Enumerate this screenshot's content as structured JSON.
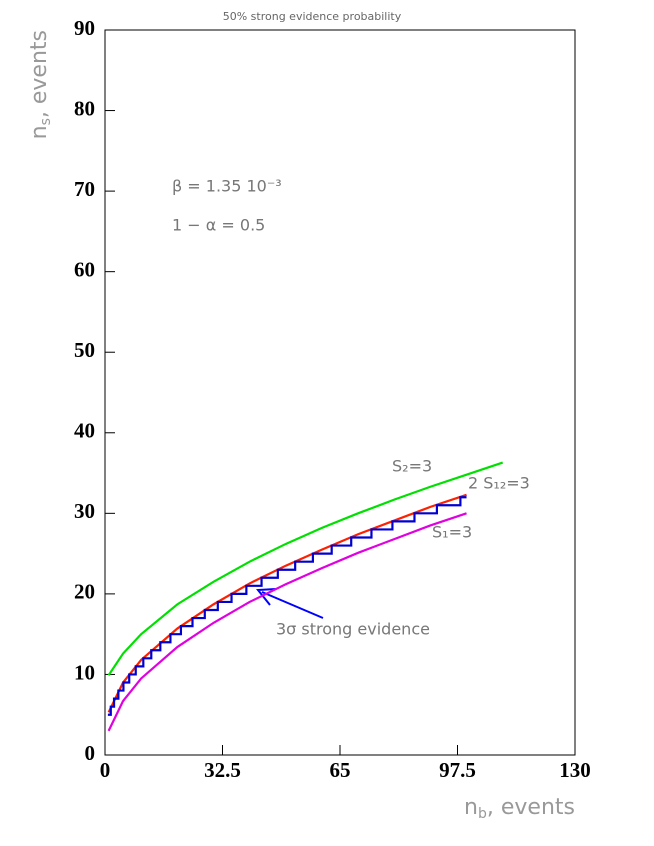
{
  "chart_data": {
    "type": "line",
    "title": "50% strong evidence probability",
    "xlabel": {
      "base": "n",
      "sub": "b",
      "rest": ", events"
    },
    "ylabel": {
      "base": "n",
      "sub": "s",
      "rest": ", events"
    },
    "xlim": [
      0,
      130
    ],
    "xticks": [
      0,
      32.5,
      65,
      97.5,
      130
    ],
    "ylim": [
      0,
      90
    ],
    "yticks": [
      0,
      10,
      20,
      30,
      40,
      50,
      60,
      70,
      80,
      90
    ],
    "series": [
      {
        "color": "#00e000",
        "x": [
          1,
          5,
          10,
          20,
          30,
          40,
          50,
          60,
          70,
          80,
          90,
          100,
          110
        ],
        "values": [
          9.9,
          12.6,
          15,
          18.7,
          21.5,
          24,
          26.2,
          28.2,
          30,
          31.7,
          33.3,
          34.8,
          36.3
        ]
      },
      {
        "color": "#e000e0",
        "x": [
          1,
          5,
          10,
          20,
          30,
          40,
          50,
          60,
          70,
          80,
          90,
          100
        ],
        "values": [
          3,
          6.7,
          9.5,
          13.4,
          16.4,
          19,
          21.2,
          23.2,
          25.1,
          26.8,
          28.5,
          30
        ]
      },
      {
        "color": "#ff2000",
        "x": [
          1,
          5,
          10,
          20,
          30,
          40,
          50,
          60,
          70,
          80,
          90,
          100
        ],
        "values": [
          5.3,
          9,
          11.8,
          15.7,
          18.7,
          21.3,
          23.5,
          25.5,
          27.4,
          29.1,
          30.8,
          32.3
        ]
      },
      {
        "color": "#0000d0",
        "x": [
          0.8,
          1.6,
          1.6,
          2.5,
          2.5,
          3.7,
          3.7,
          5.1,
          5.1,
          6.7,
          6.7,
          8.5,
          8.5,
          10.6,
          10.6,
          12.8,
          12.8,
          15.3,
          15.3,
          18.1,
          18.1,
          21,
          21,
          24.2,
          24.2,
          27.6,
          27.6,
          31.2,
          31.2,
          35,
          35,
          39.1,
          39.1,
          43.3,
          43.3,
          47.8,
          47.8,
          52.6,
          52.6,
          57.5,
          57.5,
          62.7,
          62.7,
          68.1,
          68.1,
          73.7,
          73.7,
          79.5,
          79.5,
          85.6,
          85.6,
          91.8,
          91.8,
          98.3,
          98.3,
          100
        ],
        "values": [
          5,
          5,
          6,
          6,
          7,
          7,
          8,
          8,
          9,
          9,
          10,
          10,
          11,
          11,
          12,
          12,
          13,
          13,
          14,
          14,
          15,
          15,
          16,
          16,
          17,
          17,
          18,
          18,
          19,
          19,
          20,
          20,
          21,
          21,
          22,
          22,
          23,
          23,
          24,
          24,
          25,
          25,
          26,
          26,
          27,
          27,
          28,
          28,
          29,
          29,
          30,
          30,
          31,
          31,
          32,
          32
        ]
      }
    ],
    "annotations": [
      "β = 1.35 10⁻³",
      "1 − α = 0.5",
      "S₂=3",
      "2 S₁₂=3",
      "S₁=3",
      "3σ strong evidence"
    ]
  }
}
